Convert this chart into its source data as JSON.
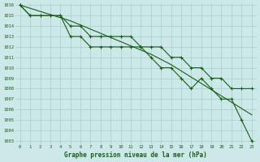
{
  "title": "Graphe pression niveau de la mer (hPa)",
  "x_labels": [
    0,
    1,
    2,
    3,
    4,
    5,
    6,
    7,
    8,
    9,
    10,
    11,
    12,
    13,
    14,
    15,
    16,
    17,
    18,
    19,
    20,
    21,
    22,
    23
  ],
  "series_trend": [
    1016,
    1015.7,
    1015.4,
    1015.1,
    1014.8,
    1014.5,
    1014.1,
    1013.7,
    1013.3,
    1012.9,
    1012.5,
    1012.1,
    1011.7,
    1011.3,
    1010.8,
    1010.3,
    1009.7,
    1009.1,
    1008.5,
    1007.9,
    1007.3,
    1006.7,
    1006.1,
    1005.5
  ],
  "series_upper": [
    1016,
    1015,
    1015,
    1015,
    1015,
    1014,
    1014,
    1013,
    1013,
    1013,
    1013,
    1013,
    1012,
    1012,
    1012,
    1011,
    1011,
    1010,
    1010,
    1009,
    1009,
    1008,
    1008,
    1008
  ],
  "series_lower": [
    1016,
    1015,
    1015,
    1015,
    1015,
    1013,
    1013,
    1012,
    1012,
    1012,
    1012,
    1012,
    1012,
    1011,
    1010,
    1010,
    1009,
    1008,
    1009,
    1008,
    1007,
    1007,
    1005,
    1003
  ],
  "line_color": "#1a5c1a",
  "bg_color": "#cce8e8",
  "grid_color": "#aacccc",
  "text_color": "#1a5c1a",
  "ylim_min": 1003,
  "ylim_max": 1016,
  "yticks": [
    1003,
    1004,
    1005,
    1006,
    1007,
    1008,
    1009,
    1010,
    1011,
    1012,
    1013,
    1014,
    1015,
    1016
  ]
}
